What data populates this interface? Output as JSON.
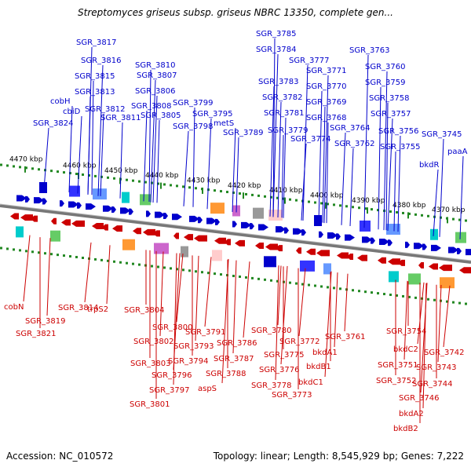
{
  "title": "Streptomyces griseus subsp. griseus NBRC 13350, complete gen...",
  "footer": {
    "accession_label": "Accession:",
    "accession": "NC_010572",
    "topology_label": "Topology:",
    "topology": "linear",
    "length_label": "Length:",
    "length": "8,545,929 bp",
    "genes_label": "Genes:",
    "genes": "7,222"
  },
  "colors": {
    "forward_strand": "#0000cc",
    "reverse_strand": "#cc0000",
    "ruler_dots": "#228822",
    "backbone": "#777777"
  },
  "ruler_ticks": [
    "4470 kbp",
    "4460 kbp",
    "4450 kbp",
    "4440 kbp",
    "4430 kbp",
    "4420 kbp",
    "4410 kbp",
    "4400 kbp",
    "4390 kbp",
    "4380 kbp",
    "4370 kbp"
  ],
  "top_genes": [
    "SGR_3824",
    "cbiD",
    "cobH",
    "SGR_3813",
    "SGR_3815",
    "SGR_3816",
    "SGR_3817",
    "SGR_3812",
    "SGR_3811",
    "SGR_3810",
    "SGR_3807",
    "SGR_3806",
    "SGR_3808",
    "SGR_3805",
    "SGR_3799",
    "SGR_3798",
    "SGR_3795",
    "metS",
    "SGR_3789",
    "SGR_3785",
    "SGR_3784",
    "SGR_3783",
    "SGR_3782",
    "SGR_3781",
    "SGR_3779",
    "SGR_3777",
    "SGR_3771",
    "SGR_3770",
    "SGR_3769",
    "SGR_3768",
    "SGR_3774",
    "SGR_3763",
    "SGR_3760",
    "SGR_3759",
    "SGR_3758",
    "SGR_3757",
    "SGR_3764",
    "SGR_3762",
    "SGR_3756",
    "SGR_3755",
    "bkdR",
    "SGR_3745",
    "paaA"
  ],
  "bottom_genes": [
    "cobN",
    "SGR_3819",
    "SGR_3821",
    "SGR_3814",
    "trpS2",
    "SGR_3804",
    "SGR_3800",
    "SGR_3802",
    "SGR_3803",
    "SGR_3796",
    "SGR_3797",
    "SGR_3801",
    "SGR_3791",
    "SGR_3793",
    "SGR_3794",
    "SGR_3786",
    "SGR_3787",
    "SGR_3788",
    "aspS",
    "SGR_3780",
    "SGR_3775",
    "SGR_3776",
    "SGR_3778",
    "SGR_3773",
    "SGR_3772",
    "bkdA1",
    "bkdB1",
    "bkdC1",
    "SGR_3761",
    "SGR_3754",
    "bkdC2",
    "SGR_3751",
    "SGR_3752",
    "SGR_3746",
    "bkdA2",
    "bkdB2",
    "SGR_3742",
    "SGR_3743",
    "SGR_3744"
  ]
}
